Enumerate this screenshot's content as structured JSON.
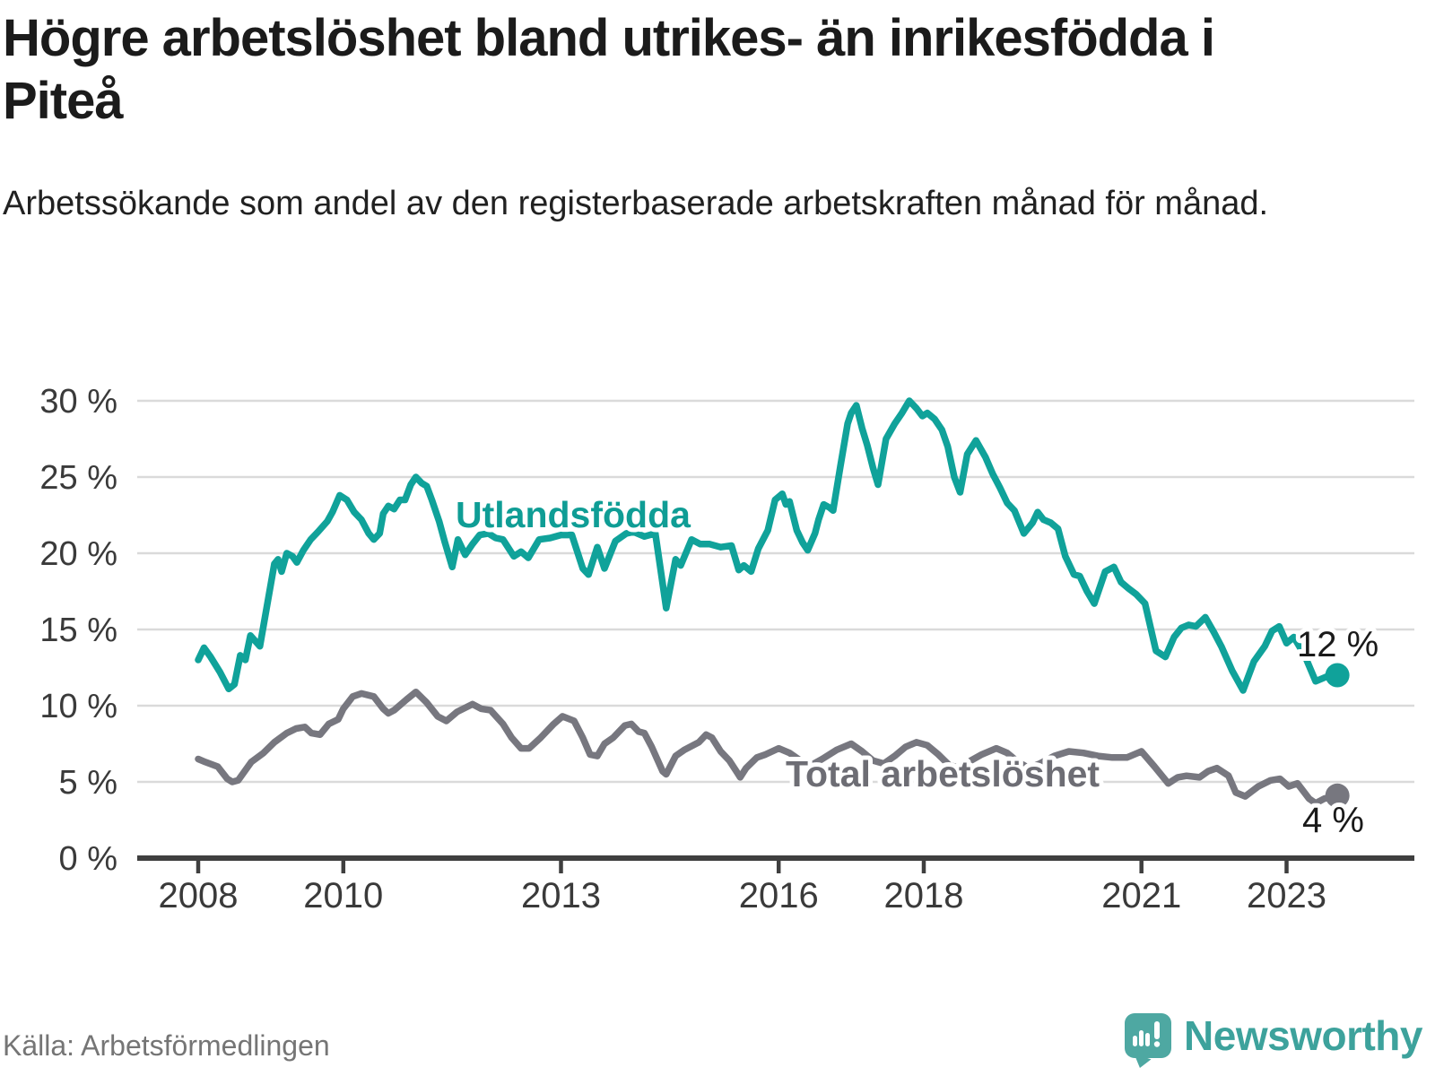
{
  "title": "Högre arbetslöshet bland utrikes- än inrikesfödda i Piteå",
  "subtitle": "Arbetssökande som andel av den registerbaserade arbetskraften månad för månad.",
  "source": "Källa: Arbetsförmedlingen",
  "branding": {
    "name": "Newsworthy"
  },
  "chart_data": {
    "type": "line",
    "title": "Högre arbetslöshet bland utrikes- än inrikesfödda i Piteå",
    "xlabel": "",
    "ylabel": "",
    "grid": true,
    "legend_position": "inline-labels",
    "x_axis": {
      "tick_years": [
        2008,
        2010,
        2013,
        2016,
        2018,
        2021,
        2023
      ],
      "range": [
        2007.9,
        2024.0
      ]
    },
    "y_axis": {
      "tick_values": [
        0,
        5,
        10,
        15,
        20,
        25,
        30
      ],
      "tick_labels": [
        "0 %",
        "5 %",
        "10 %",
        "15 %",
        "20 %",
        "25 %",
        "30 %"
      ],
      "ylim": [
        0,
        31
      ]
    },
    "grid_color": "#dadada",
    "axis_color": "#3f3f3f",
    "series": [
      {
        "id": "utlandsfodda",
        "name": "Utlandsfödda",
        "color": "#10a29a",
        "label_color": "#0f9d95",
        "end_label": "12 %",
        "end_value": 12,
        "points": [
          [
            2008.0,
            13.0
          ],
          [
            2008.08,
            13.8
          ],
          [
            2008.17,
            13.2
          ],
          [
            2008.3,
            12.2
          ],
          [
            2008.42,
            11.1
          ],
          [
            2008.5,
            11.4
          ],
          [
            2008.58,
            13.3
          ],
          [
            2008.65,
            13.0
          ],
          [
            2008.72,
            14.6
          ],
          [
            2008.85,
            13.9
          ],
          [
            2009.05,
            19.3
          ],
          [
            2009.1,
            19.6
          ],
          [
            2009.15,
            18.8
          ],
          [
            2009.22,
            20.0
          ],
          [
            2009.3,
            19.8
          ],
          [
            2009.36,
            19.4
          ],
          [
            2009.45,
            20.2
          ],
          [
            2009.55,
            20.9
          ],
          [
            2009.65,
            21.4
          ],
          [
            2009.78,
            22.1
          ],
          [
            2009.85,
            22.7
          ],
          [
            2009.95,
            23.8
          ],
          [
            2010.05,
            23.5
          ],
          [
            2010.15,
            22.7
          ],
          [
            2010.25,
            22.2
          ],
          [
            2010.35,
            21.3
          ],
          [
            2010.42,
            20.9
          ],
          [
            2010.5,
            21.3
          ],
          [
            2010.55,
            22.6
          ],
          [
            2010.62,
            23.1
          ],
          [
            2010.7,
            22.9
          ],
          [
            2010.78,
            23.5
          ],
          [
            2010.85,
            23.5
          ],
          [
            2010.93,
            24.5
          ],
          [
            2011.0,
            25.0
          ],
          [
            2011.08,
            24.6
          ],
          [
            2011.15,
            24.4
          ],
          [
            2011.22,
            23.5
          ],
          [
            2011.32,
            22.1
          ],
          [
            2011.4,
            20.7
          ],
          [
            2011.5,
            19.1
          ],
          [
            2011.58,
            20.9
          ],
          [
            2011.68,
            19.9
          ],
          [
            2011.78,
            20.6
          ],
          [
            2011.88,
            21.2
          ],
          [
            2012.0,
            21.3
          ],
          [
            2012.1,
            21.0
          ],
          [
            2012.2,
            20.9
          ],
          [
            2012.35,
            19.8
          ],
          [
            2012.45,
            20.1
          ],
          [
            2012.55,
            19.7
          ],
          [
            2012.7,
            20.9
          ],
          [
            2012.85,
            21.0
          ],
          [
            2013.0,
            21.2
          ],
          [
            2013.15,
            21.2
          ],
          [
            2013.3,
            19.0
          ],
          [
            2013.38,
            18.6
          ],
          [
            2013.5,
            20.4
          ],
          [
            2013.6,
            19.0
          ],
          [
            2013.75,
            20.8
          ],
          [
            2013.9,
            21.3
          ],
          [
            2014.0,
            21.4
          ],
          [
            2014.15,
            21.1
          ],
          [
            2014.3,
            21.3
          ],
          [
            2014.45,
            16.4
          ],
          [
            2014.58,
            19.6
          ],
          [
            2014.65,
            19.2
          ],
          [
            2014.8,
            20.9
          ],
          [
            2014.92,
            20.6
          ],
          [
            2015.05,
            20.6
          ],
          [
            2015.2,
            20.4
          ],
          [
            2015.35,
            20.5
          ],
          [
            2015.45,
            18.9
          ],
          [
            2015.52,
            19.2
          ],
          [
            2015.62,
            18.8
          ],
          [
            2015.72,
            20.3
          ],
          [
            2015.85,
            21.5
          ],
          [
            2015.95,
            23.5
          ],
          [
            2016.05,
            23.9
          ],
          [
            2016.1,
            23.2
          ],
          [
            2016.15,
            23.4
          ],
          [
            2016.25,
            21.5
          ],
          [
            2016.33,
            20.7
          ],
          [
            2016.4,
            20.2
          ],
          [
            2016.5,
            21.3
          ],
          [
            2016.55,
            22.2
          ],
          [
            2016.62,
            23.2
          ],
          [
            2016.7,
            23.0
          ],
          [
            2016.75,
            22.8
          ],
          [
            2016.85,
            25.7
          ],
          [
            2016.95,
            28.5
          ],
          [
            2017.0,
            29.2
          ],
          [
            2017.07,
            29.7
          ],
          [
            2017.15,
            28.2
          ],
          [
            2017.22,
            27.1
          ],
          [
            2017.3,
            25.6
          ],
          [
            2017.37,
            24.5
          ],
          [
            2017.48,
            27.5
          ],
          [
            2017.6,
            28.5
          ],
          [
            2017.7,
            29.2
          ],
          [
            2017.8,
            30.0
          ],
          [
            2017.9,
            29.5
          ],
          [
            2017.98,
            29.0
          ],
          [
            2018.05,
            29.2
          ],
          [
            2018.15,
            28.8
          ],
          [
            2018.25,
            28.1
          ],
          [
            2018.33,
            27.0
          ],
          [
            2018.42,
            25.0
          ],
          [
            2018.5,
            24.0
          ],
          [
            2018.6,
            26.5
          ],
          [
            2018.72,
            27.4
          ],
          [
            2018.85,
            26.3
          ],
          [
            2018.95,
            25.2
          ],
          [
            2019.05,
            24.3
          ],
          [
            2019.15,
            23.3
          ],
          [
            2019.25,
            22.8
          ],
          [
            2019.38,
            21.3
          ],
          [
            2019.5,
            22.0
          ],
          [
            2019.57,
            22.7
          ],
          [
            2019.65,
            22.2
          ],
          [
            2019.75,
            22.0
          ],
          [
            2019.85,
            21.6
          ],
          [
            2019.95,
            19.8
          ],
          [
            2020.07,
            18.6
          ],
          [
            2020.15,
            18.5
          ],
          [
            2020.25,
            17.5
          ],
          [
            2020.35,
            16.7
          ],
          [
            2020.5,
            18.8
          ],
          [
            2020.62,
            19.1
          ],
          [
            2020.72,
            18.1
          ],
          [
            2020.82,
            17.7
          ],
          [
            2020.93,
            17.3
          ],
          [
            2021.05,
            16.7
          ],
          [
            2021.2,
            13.6
          ],
          [
            2021.33,
            13.2
          ],
          [
            2021.45,
            14.5
          ],
          [
            2021.55,
            15.1
          ],
          [
            2021.65,
            15.3
          ],
          [
            2021.75,
            15.2
          ],
          [
            2021.88,
            15.8
          ],
          [
            2022.0,
            14.8
          ],
          [
            2022.1,
            13.9
          ],
          [
            2022.25,
            12.3
          ],
          [
            2022.4,
            11.0
          ],
          [
            2022.55,
            12.9
          ],
          [
            2022.7,
            13.9
          ],
          [
            2022.8,
            14.9
          ],
          [
            2022.9,
            15.2
          ],
          [
            2023.0,
            14.1
          ],
          [
            2023.1,
            14.5
          ],
          [
            2023.25,
            13.3
          ],
          [
            2023.4,
            11.6
          ],
          [
            2023.55,
            11.9
          ],
          [
            2023.7,
            12.0
          ]
        ]
      },
      {
        "id": "total-arbetsloshet",
        "name": "Total arbetslöshet",
        "color": "#77777f",
        "label_color": "#6d6d74",
        "end_label": "4 %",
        "end_value": 4,
        "points": [
          [
            2008.0,
            6.5
          ],
          [
            2008.1,
            6.3
          ],
          [
            2008.27,
            6.0
          ],
          [
            2008.4,
            5.2
          ],
          [
            2008.47,
            5.0
          ],
          [
            2008.55,
            5.1
          ],
          [
            2008.73,
            6.3
          ],
          [
            2008.9,
            6.9
          ],
          [
            2009.05,
            7.6
          ],
          [
            2009.22,
            8.2
          ],
          [
            2009.35,
            8.5
          ],
          [
            2009.47,
            8.6
          ],
          [
            2009.56,
            8.2
          ],
          [
            2009.68,
            8.1
          ],
          [
            2009.8,
            8.8
          ],
          [
            2009.93,
            9.1
          ],
          [
            2010.0,
            9.8
          ],
          [
            2010.13,
            10.6
          ],
          [
            2010.25,
            10.8
          ],
          [
            2010.42,
            10.6
          ],
          [
            2010.55,
            9.8
          ],
          [
            2010.62,
            9.5
          ],
          [
            2010.7,
            9.7
          ],
          [
            2010.87,
            10.4
          ],
          [
            2011.0,
            10.9
          ],
          [
            2011.15,
            10.2
          ],
          [
            2011.3,
            9.3
          ],
          [
            2011.42,
            9.0
          ],
          [
            2011.57,
            9.6
          ],
          [
            2011.78,
            10.1
          ],
          [
            2011.9,
            9.8
          ],
          [
            2012.03,
            9.7
          ],
          [
            2012.2,
            8.8
          ],
          [
            2012.32,
            7.9
          ],
          [
            2012.45,
            7.2
          ],
          [
            2012.56,
            7.2
          ],
          [
            2012.72,
            7.9
          ],
          [
            2012.9,
            8.8
          ],
          [
            2013.02,
            9.3
          ],
          [
            2013.18,
            9.0
          ],
          [
            2013.3,
            7.9
          ],
          [
            2013.4,
            6.8
          ],
          [
            2013.5,
            6.7
          ],
          [
            2013.6,
            7.5
          ],
          [
            2013.72,
            7.9
          ],
          [
            2013.88,
            8.7
          ],
          [
            2013.97,
            8.8
          ],
          [
            2014.07,
            8.3
          ],
          [
            2014.15,
            8.2
          ],
          [
            2014.25,
            7.3
          ],
          [
            2014.4,
            5.7
          ],
          [
            2014.45,
            5.5
          ],
          [
            2014.58,
            6.7
          ],
          [
            2014.7,
            7.1
          ],
          [
            2014.9,
            7.6
          ],
          [
            2015.0,
            8.1
          ],
          [
            2015.08,
            7.9
          ],
          [
            2015.2,
            7.0
          ],
          [
            2015.32,
            6.4
          ],
          [
            2015.43,
            5.6
          ],
          [
            2015.47,
            5.3
          ],
          [
            2015.55,
            5.9
          ],
          [
            2015.7,
            6.6
          ],
          [
            2015.82,
            6.8
          ],
          [
            2016.0,
            7.2
          ],
          [
            2016.15,
            6.9
          ],
          [
            2016.3,
            6.4
          ],
          [
            2016.45,
            6.1
          ],
          [
            2016.6,
            6.5
          ],
          [
            2016.8,
            7.1
          ],
          [
            2017.0,
            7.5
          ],
          [
            2017.15,
            7.0
          ],
          [
            2017.3,
            6.4
          ],
          [
            2017.45,
            6.2
          ],
          [
            2017.6,
            6.7
          ],
          [
            2017.75,
            7.3
          ],
          [
            2017.9,
            7.6
          ],
          [
            2018.05,
            7.4
          ],
          [
            2018.2,
            6.8
          ],
          [
            2018.35,
            6.1
          ],
          [
            2018.5,
            5.9
          ],
          [
            2018.65,
            6.4
          ],
          [
            2018.8,
            6.8
          ],
          [
            2019.0,
            7.2
          ],
          [
            2019.15,
            6.9
          ],
          [
            2019.3,
            6.3
          ],
          [
            2019.45,
            5.9
          ],
          [
            2019.6,
            6.2
          ],
          [
            2019.8,
            6.7
          ],
          [
            2020.0,
            7.0
          ],
          [
            2020.2,
            6.9
          ],
          [
            2020.4,
            6.7
          ],
          [
            2020.6,
            6.6
          ],
          [
            2020.8,
            6.6
          ],
          [
            2021.0,
            7.0
          ],
          [
            2021.18,
            6.0
          ],
          [
            2021.3,
            5.3
          ],
          [
            2021.37,
            4.9
          ],
          [
            2021.5,
            5.3
          ],
          [
            2021.62,
            5.4
          ],
          [
            2021.8,
            5.3
          ],
          [
            2021.92,
            5.7
          ],
          [
            2022.04,
            5.9
          ],
          [
            2022.2,
            5.4
          ],
          [
            2022.3,
            4.3
          ],
          [
            2022.43,
            4.05
          ],
          [
            2022.61,
            4.7
          ],
          [
            2022.78,
            5.1
          ],
          [
            2022.91,
            5.2
          ],
          [
            2023.03,
            4.7
          ],
          [
            2023.15,
            4.9
          ],
          [
            2023.31,
            3.9
          ],
          [
            2023.4,
            3.6
          ],
          [
            2023.52,
            3.9
          ],
          [
            2023.7,
            4.1
          ]
        ]
      }
    ]
  }
}
